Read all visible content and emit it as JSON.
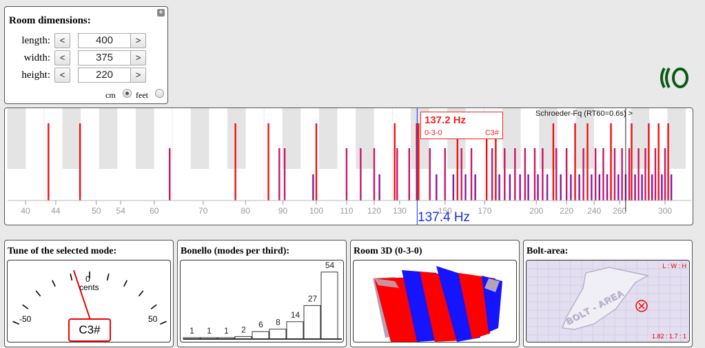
{
  "room_dimensions": {
    "title": "Room dimensions:",
    "plus_icon": "+",
    "rows": [
      {
        "label": "length:",
        "value": "400"
      },
      {
        "label": "width:",
        "value": "375"
      },
      {
        "label": "height:",
        "value": "220"
      }
    ],
    "dec": "<",
    "inc": ">",
    "unit_cm": "cm",
    "unit_feet": "feet",
    "selected_unit": "cm"
  },
  "spectrum": {
    "axis_labels": [
      "40",
      "44",
      "50",
      "54",
      "60",
      "70",
      "80",
      "90",
      "100",
      "110",
      "120",
      "130",
      "150",
      "170",
      "200",
      "220",
      "240",
      "260",
      "300"
    ],
    "axis_ticks_hz": [
      40,
      44,
      50,
      54,
      60,
      70,
      80,
      90,
      100,
      110,
      120,
      130,
      150,
      170,
      200,
      220,
      240,
      260,
      300
    ],
    "cursor_frequency": "137.4 Hz",
    "tooltip": {
      "frequency": "137.2 Hz",
      "mode": "0-3-0",
      "note": "C3#"
    },
    "schroeder": "Schroeder-Fq (RT60=0.6s) >",
    "colors": {
      "axial": "#f01010",
      "tangential": "#cc1466",
      "oblique": "#8a14a0",
      "cursor": "#1a2ee6"
    }
  },
  "tune": {
    "title": "Tune of the selected mode:",
    "zero": "0",
    "cents": "cents",
    "minus": "-50",
    "plus": "50",
    "note": "C3#",
    "needle_cents": -8
  },
  "bonello": {
    "title": "Bonello (modes per third):",
    "values": [
      1,
      1,
      1,
      2,
      6,
      8,
      14,
      27,
      54
    ]
  },
  "room3d": {
    "title": "Room 3D (0-3-0)"
  },
  "bolt": {
    "title": "Bolt-area:",
    "label": "BOLT - AREA",
    "ratio_header": "L : W : H",
    "ratio": "1.82 : 1.7 : 1",
    "marker_icon": "circled-x-icon"
  }
}
